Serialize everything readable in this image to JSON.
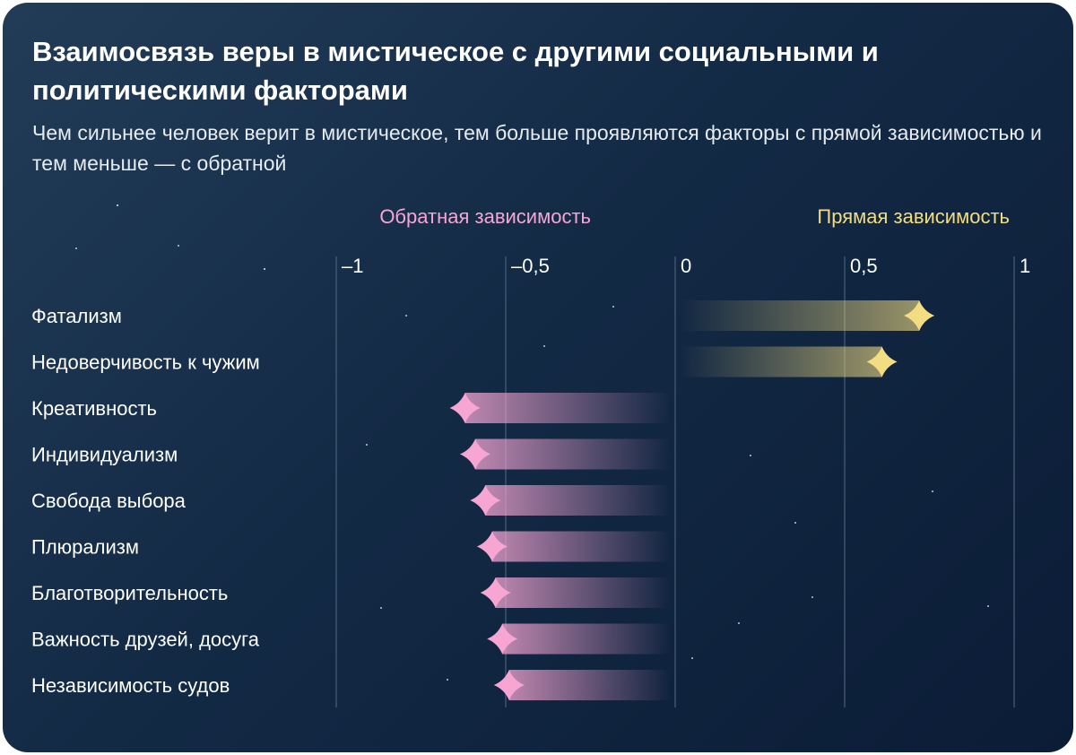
{
  "title": "Взаимосвязь веры в мистическое с другими социальными и политическими факторами",
  "subtitle": "Чем сильнее человек верит в мистическое, тем больше проявляются факторы с прямой зависимостью и тем меньше — с обратной",
  "colors": {
    "negative": "#f7a6d4",
    "positive": "#f3dd82",
    "background": "#132a45",
    "grid": "#4a5f78"
  },
  "chart_data": {
    "type": "bar",
    "orientation": "horizontal",
    "headers": {
      "negative": "Обратная зависимость",
      "positive": "Прямая зависимость"
    },
    "xlim": [
      -1,
      1
    ],
    "ticks": [
      {
        "value": -1,
        "label": "–1"
      },
      {
        "value": -0.5,
        "label": "–0,5"
      },
      {
        "value": 0,
        "label": "0"
      },
      {
        "value": 0.5,
        "label": "0,5"
      },
      {
        "value": 1,
        "label": "1"
      }
    ],
    "categories": [
      "Фатализм",
      "Недоверчивость к чужим",
      "Креативность",
      "Индивидуализм",
      "Свобода выбора",
      "Плюрализм",
      "Благотворительность",
      "Важность друзей, досуга",
      "Независимость судов"
    ],
    "values": [
      0.72,
      0.61,
      -0.62,
      -0.59,
      -0.56,
      -0.54,
      -0.53,
      -0.51,
      -0.49
    ],
    "grid": true
  }
}
